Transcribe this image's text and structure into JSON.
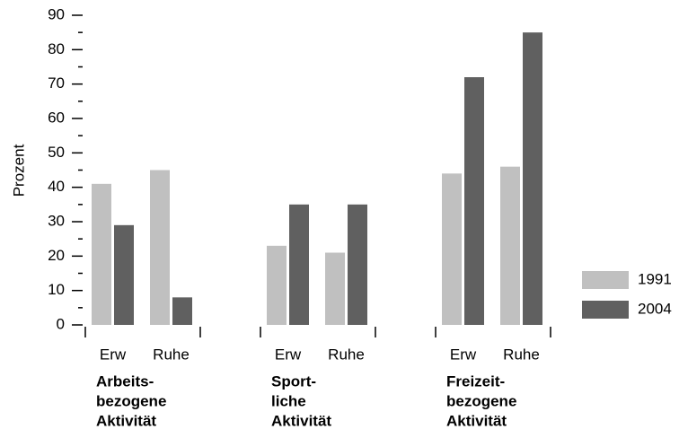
{
  "chart_data": {
    "type": "grouped_bar",
    "y_label": "Prozent",
    "categories": [
      "Erw",
      "Ruhe",
      "Erw",
      "Ruhe",
      "Erw",
      "Ruhe"
    ],
    "groups": [
      [
        "Arbeits-",
        "bezogene",
        "Aktivität"
      ],
      [
        "Sport-",
        "liche",
        "Aktivität"
      ],
      [
        "Freizeit-",
        "bezogene",
        "Aktivität"
      ]
    ],
    "series": [
      {
        "name": "1991",
        "color": "#c0c0c0",
        "values": [
          41,
          45,
          23,
          21,
          44,
          46
        ]
      },
      {
        "name": "2004",
        "color": "#606060",
        "values": [
          29,
          8,
          35,
          35,
          72,
          85
        ]
      }
    ],
    "ylim": [
      0,
      90
    ],
    "yticks": [
      0,
      10,
      20,
      30,
      40,
      50,
      60,
      70,
      80,
      90
    ],
    "yminor_ticks": [
      5,
      15,
      25,
      35,
      45,
      55,
      65,
      75,
      85
    ],
    "grid": false,
    "legend": "right"
  }
}
